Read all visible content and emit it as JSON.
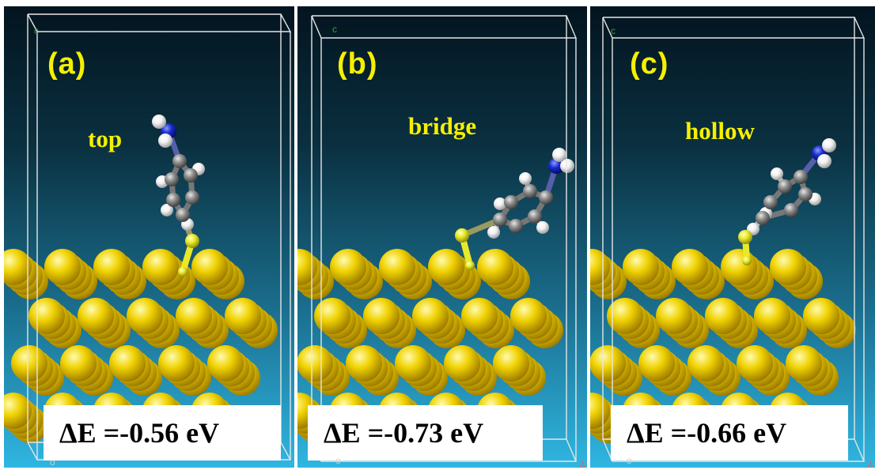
{
  "panels": [
    {
      "label": "(a)",
      "site": "top",
      "energy": "ΔE =-0.56 eV",
      "axes": {
        "c": "c",
        "o": "o",
        "a": "A"
      }
    },
    {
      "label": "(b)",
      "site": "bridge",
      "energy": "ΔE =-0.73 eV",
      "axes": {
        "c": "c",
        "o": "o",
        "a": "A"
      }
    },
    {
      "label": "(c)",
      "site": "hollow",
      "energy": "ΔE =-0.66 eV",
      "axes": {
        "c": "c",
        "o": "o",
        "a": "A"
      }
    }
  ],
  "colors": {
    "label_yellow": "#f5f000",
    "gold_atom": "#f0d200",
    "sulfur": "#e9e92a",
    "carbon": "#8d8d8d",
    "hydrogen": "#f2f2f2",
    "nitrogen": "#1a2ccc",
    "cell_lines": "#e6e6e6"
  }
}
